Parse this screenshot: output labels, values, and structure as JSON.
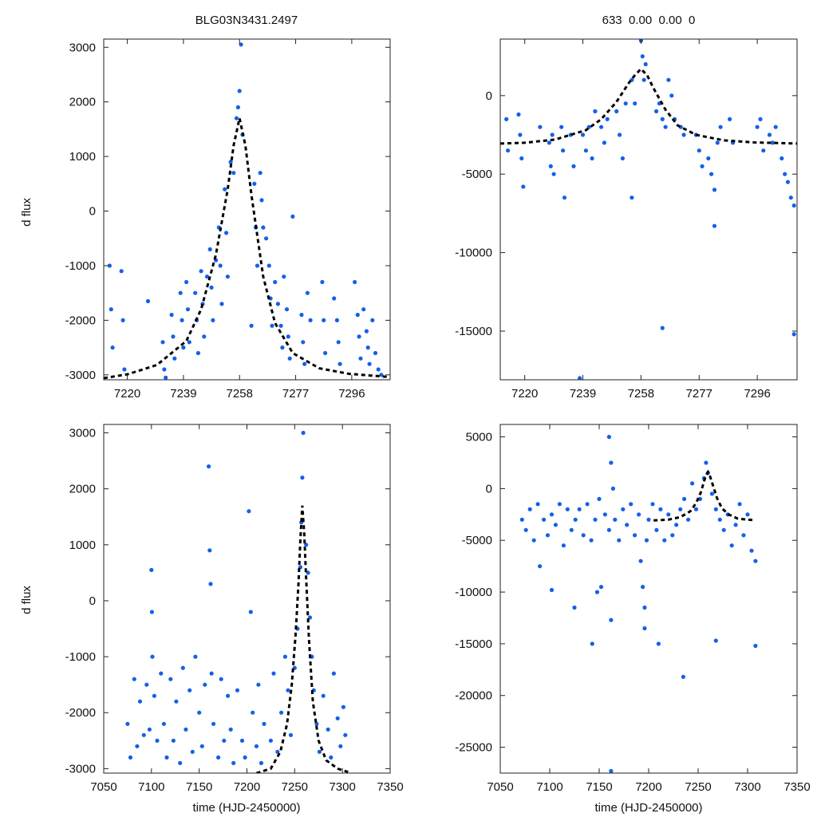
{
  "figure": {
    "title_left": "BLG03N3431.2497",
    "title_right": "633  0.00  0.00  0",
    "ylabel": "d flux",
    "xlabel": "time (HJD-2450000)",
    "point_color": "#1560e8",
    "model_color": "#000000"
  },
  "chart_data": [
    {
      "id": "top-left",
      "type": "scatter",
      "xlim": [
        7212,
        7309
      ],
      "ylim": [
        -3090,
        3150
      ],
      "xticks": [
        7220,
        7239,
        7258,
        7277,
        7296
      ],
      "yticks": [
        -3000,
        -2000,
        -1000,
        0,
        1000,
        2000,
        3000
      ],
      "xlabel": "",
      "ylabel": "d flux",
      "series": [
        {
          "name": "data",
          "x": [
            7214,
            7214.5,
            7215,
            7218,
            7218.5,
            7219,
            7227,
            7232,
            7232.5,
            7233,
            7235,
            7235.5,
            7236,
            7238,
            7238.5,
            7239,
            7240,
            7240.5,
            7241,
            7243,
            7243.5,
            7244,
            7245,
            7245.5,
            7246,
            7247,
            7248,
            7248.5,
            7249,
            7250,
            7251,
            7251.5,
            7252,
            7253,
            7253.5,
            7254,
            7255,
            7256,
            7257,
            7257.5,
            7258,
            7258.5,
            7259,
            7262,
            7263,
            7263.5,
            7264,
            7265,
            7265.5,
            7266,
            7267,
            7268,
            7268.5,
            7269,
            7270,
            7271,
            7272,
            7272.5,
            7273,
            7274,
            7274.5,
            7275,
            7276,
            7279,
            7279.5,
            7280,
            7281,
            7282,
            7286,
            7286.5,
            7287,
            7290,
            7291,
            7291.5,
            7292,
            7297,
            7298,
            7298.5,
            7299,
            7300,
            7301,
            7301.5,
            7302,
            7303,
            7304,
            7305,
            7306
          ],
          "y": [
            -1000,
            -1800,
            -2500,
            -1100,
            -2000,
            -2900,
            -1650,
            -2400,
            -2900,
            -3050,
            -1900,
            -2300,
            -2700,
            -1500,
            -2000,
            -2500,
            -1300,
            -1800,
            -2400,
            -1500,
            -2000,
            -2600,
            -1100,
            -1700,
            -2300,
            -1200,
            -700,
            -1400,
            -2000,
            -900,
            -300,
            -1000,
            -1700,
            400,
            -400,
            -1200,
            900,
            700,
            1700,
            1900,
            2200,
            3050,
            1400,
            -2100,
            500,
            -300,
            -1000,
            700,
            200,
            -300,
            -500,
            -1000,
            -1600,
            -2100,
            -1300,
            -1700,
            -2100,
            -2500,
            -1200,
            -1800,
            -2300,
            -2700,
            -100,
            -1900,
            -2400,
            -2800,
            -1500,
            -2000,
            -1300,
            -2000,
            -2600,
            -1600,
            -2000,
            -2400,
            -2800,
            -1300,
            -1900,
            -2300,
            -2700,
            -1800,
            -2200,
            -2500,
            -2800,
            -2000,
            -2600,
            -2900,
            -3000
          ]
        },
        {
          "name": "model",
          "x": [
            7212,
            7220,
            7230,
            7240,
            7245,
            7250,
            7254,
            7256,
            7258,
            7260,
            7262,
            7266,
            7270,
            7276,
            7285,
            7295,
            7309
          ],
          "y": [
            -3060,
            -2990,
            -2820,
            -2380,
            -1800,
            -800,
            400,
            1200,
            1700,
            1200,
            300,
            -1200,
            -2050,
            -2600,
            -2880,
            -2980,
            -3040
          ]
        }
      ]
    },
    {
      "id": "top-right",
      "type": "scatter",
      "xlim": [
        7212,
        7309
      ],
      "ylim": [
        -18100,
        3600
      ],
      "xticks": [
        7220,
        7239,
        7258,
        7277,
        7296
      ],
      "yticks": [
        -15000,
        -10000,
        -5000,
        0
      ],
      "xlabel": "",
      "ylabel": "",
      "series": [
        {
          "name": "data",
          "x": [
            7214,
            7214.5,
            7218,
            7218.5,
            7219,
            7219.5,
            7225,
            7228,
            7228.5,
            7229,
            7229.5,
            7232,
            7232.5,
            7233,
            7235,
            7236,
            7239,
            7240,
            7241,
            7242,
            7243,
            7245,
            7246,
            7247,
            7250,
            7251,
            7252,
            7253,
            7255,
            7256,
            7258,
            7258.5,
            7259,
            7259.5,
            7263,
            7264,
            7265,
            7266,
            7267,
            7268,
            7269,
            7271,
            7272,
            7276,
            7277,
            7278,
            7280,
            7281,
            7282,
            7283,
            7284,
            7287,
            7288,
            7296,
            7297,
            7298,
            7300,
            7301,
            7302,
            7304,
            7305,
            7306,
            7307,
            7308,
            7238,
            7255,
            7265,
            7282,
            7308
          ],
          "y": [
            -1500,
            -3500,
            -1200,
            -2500,
            -4000,
            -5800,
            -2000,
            -3000,
            -4500,
            -2500,
            -5000,
            -2000,
            -3500,
            -6500,
            -2500,
            -4500,
            -2500,
            -3500,
            -2000,
            -4000,
            -1000,
            -2000,
            -3000,
            -1500,
            -1000,
            -2500,
            -4000,
            -500,
            1000,
            -500,
            3500,
            2500,
            1000,
            2000,
            -1000,
            -500,
            -1500,
            -2000,
            1000,
            0,
            -1500,
            -2000,
            -2500,
            -2500,
            -3500,
            -4500,
            -4000,
            -5000,
            -6000,
            -3000,
            -2000,
            -1500,
            -3000,
            -2000,
            -1500,
            -3500,
            -2500,
            -3000,
            -2000,
            -4000,
            -5000,
            -5500,
            -6500,
            -7000,
            -18000,
            -6500,
            -14800,
            -8300,
            -15200
          ]
        },
        {
          "name": "model",
          "x": [
            7212,
            7220,
            7230,
            7240,
            7245,
            7250,
            7254,
            7256,
            7258,
            7260,
            7262,
            7266,
            7270,
            7276,
            7285,
            7295,
            7309
          ],
          "y": [
            -3050,
            -3000,
            -2800,
            -2200,
            -1500,
            -400,
            800,
            1300,
            1700,
            1300,
            500,
            -900,
            -1900,
            -2500,
            -2850,
            -2980,
            -3050
          ]
        }
      ]
    },
    {
      "id": "bottom-left",
      "type": "scatter",
      "xlim": [
        7050,
        7350
      ],
      "ylim": [
        -3080,
        3150
      ],
      "xticks": [
        7050,
        7100,
        7150,
        7200,
        7250,
        7300,
        7350
      ],
      "yticks": [
        -3000,
        -2000,
        -1000,
        0,
        1000,
        2000,
        3000
      ],
      "xlabel": "time (HJD-2450000)",
      "ylabel": "d flux",
      "series": [
        {
          "name": "data",
          "x": [
            7075,
            7078,
            7082,
            7085,
            7088,
            7092,
            7095,
            7098,
            7100,
            7100.5,
            7101,
            7103,
            7106,
            7110,
            7113,
            7116,
            7120,
            7123,
            7126,
            7130,
            7133,
            7136,
            7140,
            7143,
            7146,
            7150,
            7153,
            7156,
            7160,
            7161,
            7162,
            7163,
            7165,
            7170,
            7173,
            7176,
            7180,
            7183,
            7186,
            7190,
            7195,
            7198,
            7202,
            7204,
            7206,
            7210,
            7212,
            7215,
            7218,
            7225,
            7228,
            7232,
            7236,
            7240,
            7243,
            7246,
            7250,
            7253,
            7256,
            7257,
            7258,
            7259,
            7262,
            7264,
            7266,
            7268,
            7270,
            7273,
            7276,
            7280,
            7285,
            7288,
            7291,
            7295,
            7298,
            7301,
            7303
          ],
          "y": [
            -2200,
            -2800,
            -1400,
            -2600,
            -1800,
            -2400,
            -1500,
            -2300,
            550,
            -200,
            -1000,
            -1700,
            -2500,
            -1300,
            -2200,
            -2800,
            -1400,
            -2500,
            -1800,
            -2900,
            -1200,
            -2300,
            -1600,
            -2700,
            -1000,
            -2000,
            -2600,
            -1500,
            2400,
            900,
            300,
            -1300,
            -2200,
            -2800,
            -1400,
            -2500,
            -1700,
            -2300,
            -2900,
            -1600,
            -2500,
            -2800,
            1600,
            -200,
            -2000,
            -2600,
            -1500,
            -2900,
            -2200,
            -2500,
            -1300,
            -2700,
            -2000,
            -1000,
            -1600,
            -2400,
            -1200,
            -500,
            600,
            1400,
            2200,
            3000,
            1000,
            500,
            -300,
            -1000,
            -1600,
            -2200,
            -2700,
            -1700,
            -2300,
            -2800,
            -1300,
            -2100,
            -2600,
            -1900,
            -2400
          ]
        },
        {
          "name": "model",
          "x": [
            7210,
            7225,
            7235,
            7242,
            7247,
            7251,
            7254,
            7256,
            7258,
            7260,
            7262,
            7265,
            7269,
            7275,
            7283,
            7295,
            7306
          ],
          "y": [
            -3080,
            -3000,
            -2700,
            -2200,
            -1500,
            -600,
            300,
            1100,
            1700,
            1200,
            400,
            -700,
            -1800,
            -2500,
            -2850,
            -3000,
            -3060
          ]
        }
      ]
    },
    {
      "id": "bottom-right",
      "type": "scatter",
      "xlim": [
        7050,
        7350
      ],
      "ylim": [
        -27500,
        6200
      ],
      "xticks": [
        7050,
        7100,
        7150,
        7200,
        7250,
        7300,
        7350
      ],
      "yticks": [
        -25000,
        -20000,
        -15000,
        -10000,
        -5000,
        0,
        5000
      ],
      "xlabel": "time (HJD-2450000)",
      "ylabel": "",
      "series": [
        {
          "name": "data",
          "x": [
            7072,
            7076,
            7080,
            7084,
            7088,
            7090,
            7094,
            7098,
            7102,
            7106,
            7110,
            7114,
            7118,
            7122,
            7126,
            7130,
            7134,
            7138,
            7142,
            7146,
            7150,
            7152,
            7156,
            7160,
            7162,
            7164,
            7166,
            7170,
            7174,
            7178,
            7182,
            7186,
            7190,
            7192,
            7194,
            7196,
            7198,
            7200,
            7204,
            7208,
            7212,
            7216,
            7220,
            7224,
            7228,
            7232,
            7236,
            7240,
            7244,
            7248,
            7252,
            7256,
            7258,
            7260,
            7264,
            7268,
            7272,
            7276,
            7280,
            7284,
            7288,
            7292,
            7296,
            7300,
            7304,
            7308,
            7102,
            7125,
            7143,
            7148,
            7160,
            7162,
            7196,
            7210,
            7235,
            7268,
            7308,
            7162
          ],
          "y": [
            -3000,
            -4000,
            -2000,
            -5000,
            -1500,
            -7500,
            -3000,
            -4500,
            -2500,
            -3500,
            -1500,
            -5500,
            -2000,
            -4000,
            -3000,
            -2000,
            -4500,
            -1500,
            -5000,
            -3000,
            -1000,
            -9500,
            -2500,
            -4000,
            2500,
            0,
            -3000,
            -5000,
            -2000,
            -3500,
            -1500,
            -4500,
            -2500,
            -7000,
            -9500,
            -11500,
            -5000,
            -3000,
            -1500,
            -4000,
            -2000,
            -5000,
            -2500,
            -4500,
            -3500,
            -2000,
            -1000,
            -3000,
            500,
            -2000,
            -1000,
            1000,
            2500,
            1500,
            -500,
            -2000,
            -3000,
            -4000,
            -2500,
            -5500,
            -3500,
            -1500,
            -4500,
            -2500,
            -6000,
            -7000,
            -9800,
            -11500,
            -15000,
            -10000,
            5000,
            -12700,
            -13500,
            -15000,
            -18200,
            -14700,
            -15200,
            -27300
          ]
        },
        {
          "name": "model",
          "x": [
            7205,
            7220,
            7232,
            7242,
            7248,
            7253,
            7256,
            7258,
            7260,
            7262,
            7265,
            7269,
            7274,
            7281,
            7290,
            7300,
            7308
          ],
          "y": [
            -3080,
            -3000,
            -2750,
            -2200,
            -1400,
            -300,
            700,
            1300,
            1600,
            1200,
            300,
            -900,
            -1900,
            -2500,
            -2900,
            -3000,
            -3060
          ]
        }
      ]
    }
  ]
}
